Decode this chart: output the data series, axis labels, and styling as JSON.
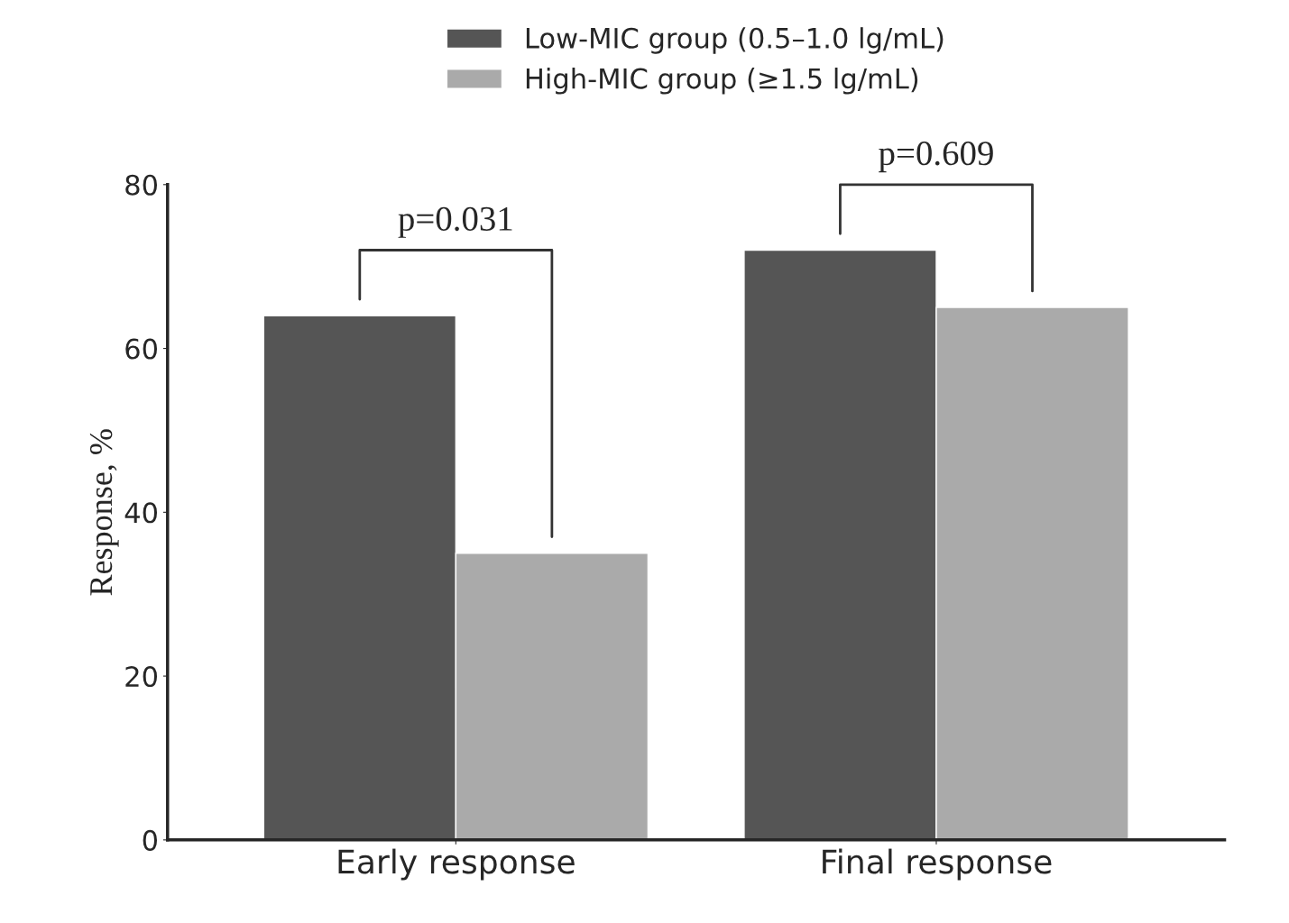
{
  "chart_data": {
    "type": "bar",
    "ylabel": "Response, %",
    "categories": [
      "Early response",
      "Final response"
    ],
    "series": [
      {
        "name": "Low-MIC group (0.5–1.0 lg/mL)",
        "color": "#555555",
        "values": [
          64,
          72
        ]
      },
      {
        "name": "High-MIC group (≥1.5 lg/mL)",
        "color": "#aaaaaa",
        "values": [
          35,
          65
        ]
      }
    ],
    "ylim": [
      0,
      80
    ],
    "yticks": [
      0,
      20,
      40,
      60,
      80
    ],
    "grid": false,
    "legend": "top",
    "annotations": [
      "p=0.031",
      "p=0.609"
    ]
  }
}
